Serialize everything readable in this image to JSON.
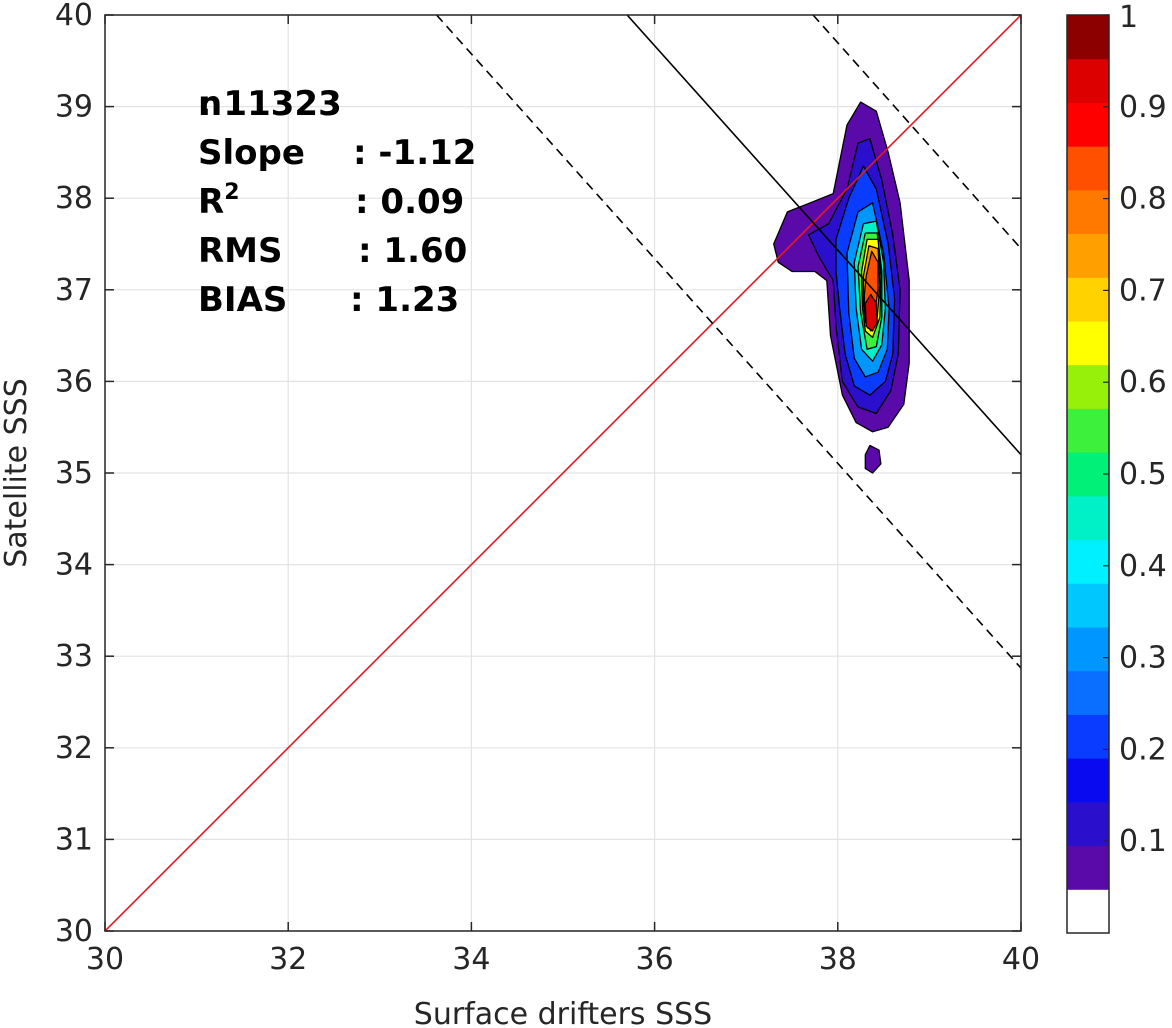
{
  "chart_data": {
    "type": "contour",
    "xlabel": "Surface drifters SSS",
    "ylabel": "Satellite SSS",
    "xlim": [
      30,
      40
    ],
    "ylim": [
      30,
      40
    ],
    "x_ticks": [
      "30",
      "32",
      "34",
      "36",
      "38",
      "40"
    ],
    "y_ticks": [
      "30",
      "31",
      "32",
      "33",
      "34",
      "35",
      "36",
      "37",
      "38",
      "39",
      "40"
    ],
    "grid": true,
    "stats": [
      {
        "label": "n",
        "value": ": 11323"
      },
      {
        "label": "Slope",
        "value": ": -1.12"
      },
      {
        "label": "R",
        "sup": "2",
        "value": ": 0.09"
      },
      {
        "label": "RMS",
        "value": ": 1.60"
      },
      {
        "label": "BIAS",
        "value": ": 1.23"
      }
    ],
    "reference_lines": [
      {
        "name": "one-to-one",
        "style": "solid",
        "color": "#e41a1c",
        "points": [
          [
            30,
            30
          ],
          [
            40,
            40
          ]
        ]
      },
      {
        "name": "regression-fit",
        "style": "solid",
        "color": "#000000",
        "points": [
          [
            35.7,
            40
          ],
          [
            40,
            35.2
          ]
        ]
      },
      {
        "name": "upper-rms-bound",
        "style": "dashed",
        "color": "#000000",
        "points": [
          [
            37.73,
            40
          ],
          [
            40,
            37.45
          ]
        ]
      },
      {
        "name": "lower-rms-bound",
        "style": "dashed",
        "color": "#000000",
        "points": [
          [
            33.62,
            40
          ],
          [
            40,
            32.87
          ]
        ]
      }
    ],
    "density_levels": [
      {
        "level": 0.05,
        "color": "#5a0aa8",
        "polygon": [
          [
            37.3,
            37.5
          ],
          [
            37.45,
            37.85
          ],
          [
            37.7,
            37.95
          ],
          [
            37.95,
            38.05
          ],
          [
            38.1,
            38.8
          ],
          [
            38.25,
            39.05
          ],
          [
            38.42,
            38.95
          ],
          [
            38.55,
            38.5
          ],
          [
            38.68,
            37.95
          ],
          [
            38.78,
            37.1
          ],
          [
            38.78,
            36.2
          ],
          [
            38.72,
            35.75
          ],
          [
            38.55,
            35.5
          ],
          [
            38.38,
            35.45
          ],
          [
            38.2,
            35.55
          ],
          [
            38.05,
            35.85
          ],
          [
            37.92,
            36.5
          ],
          [
            37.88,
            37.1
          ],
          [
            37.75,
            37.2
          ],
          [
            37.5,
            37.2
          ],
          [
            37.35,
            37.3
          ]
        ]
      },
      {
        "level": 0.05,
        "color": "#5a0aa8",
        "polygon": [
          [
            38.3,
            35.2
          ],
          [
            38.35,
            35.3
          ],
          [
            38.45,
            35.25
          ],
          [
            38.47,
            35.1
          ],
          [
            38.38,
            35.0
          ],
          [
            38.3,
            35.05
          ]
        ]
      },
      {
        "level": 0.1,
        "color": "#2a10cc",
        "polygon": [
          [
            37.68,
            37.6
          ],
          [
            37.9,
            37.72
          ],
          [
            38.1,
            38.1
          ],
          [
            38.22,
            38.6
          ],
          [
            38.35,
            38.65
          ],
          [
            38.48,
            38.2
          ],
          [
            38.6,
            37.6
          ],
          [
            38.68,
            37.0
          ],
          [
            38.66,
            36.3
          ],
          [
            38.58,
            35.9
          ],
          [
            38.42,
            35.65
          ],
          [
            38.22,
            35.72
          ],
          [
            38.05,
            36.0
          ],
          [
            37.98,
            36.6
          ],
          [
            37.95,
            37.1
          ],
          [
            37.8,
            37.35
          ]
        ]
      },
      {
        "level": 0.2,
        "color": "#0a3cff",
        "polygon": [
          [
            37.98,
            37.55
          ],
          [
            38.12,
            38.0
          ],
          [
            38.28,
            38.35
          ],
          [
            38.42,
            38.1
          ],
          [
            38.55,
            37.5
          ],
          [
            38.62,
            36.9
          ],
          [
            38.6,
            36.3
          ],
          [
            38.52,
            36.0
          ],
          [
            38.35,
            35.85
          ],
          [
            38.18,
            35.95
          ],
          [
            38.08,
            36.3
          ],
          [
            38.02,
            36.8
          ],
          [
            37.98,
            37.2
          ]
        ]
      },
      {
        "level": 0.3,
        "color": "#0096ff",
        "polygon": [
          [
            38.1,
            37.4
          ],
          [
            38.22,
            37.85
          ],
          [
            38.38,
            37.95
          ],
          [
            38.5,
            37.4
          ],
          [
            38.56,
            36.8
          ],
          [
            38.54,
            36.35
          ],
          [
            38.44,
            36.1
          ],
          [
            38.3,
            36.05
          ],
          [
            38.18,
            36.25
          ],
          [
            38.12,
            36.75
          ]
        ]
      },
      {
        "level": 0.4,
        "color": "#00f0c8",
        "polygon": [
          [
            38.18,
            37.3
          ],
          [
            38.28,
            37.72
          ],
          [
            38.42,
            37.75
          ],
          [
            38.5,
            37.3
          ],
          [
            38.52,
            36.8
          ],
          [
            38.48,
            36.4
          ],
          [
            38.38,
            36.22
          ],
          [
            38.26,
            36.35
          ],
          [
            38.2,
            36.8
          ]
        ]
      },
      {
        "level": 0.5,
        "color": "#3cf03c",
        "polygon": [
          [
            38.22,
            37.25
          ],
          [
            38.3,
            37.62
          ],
          [
            38.43,
            37.62
          ],
          [
            38.48,
            37.2
          ],
          [
            38.48,
            36.7
          ],
          [
            38.42,
            36.38
          ],
          [
            38.32,
            36.35
          ],
          [
            38.25,
            36.75
          ]
        ]
      },
      {
        "level": 0.6,
        "color": "#ffff00",
        "polygon": [
          [
            38.26,
            37.2
          ],
          [
            38.32,
            37.55
          ],
          [
            38.44,
            37.55
          ],
          [
            38.47,
            37.15
          ],
          [
            38.46,
            36.7
          ],
          [
            38.38,
            36.48
          ],
          [
            38.3,
            36.55
          ],
          [
            38.27,
            36.8
          ]
        ]
      },
      {
        "level": 0.7,
        "color": "#ffa000",
        "polygon": [
          [
            38.28,
            37.15
          ],
          [
            38.34,
            37.48
          ],
          [
            38.44,
            37.45
          ],
          [
            38.46,
            37.05
          ],
          [
            38.43,
            36.7
          ],
          [
            38.36,
            36.55
          ],
          [
            38.3,
            36.65
          ],
          [
            38.28,
            36.85
          ]
        ]
      },
      {
        "level": 0.8,
        "color": "#ff5000",
        "polygon": [
          [
            38.31,
            37.15
          ],
          [
            38.37,
            37.42
          ],
          [
            38.44,
            37.3
          ],
          [
            38.44,
            37.0
          ],
          [
            38.4,
            36.75
          ],
          [
            38.33,
            36.58
          ],
          [
            38.29,
            36.7
          ],
          [
            38.29,
            36.95
          ]
        ]
      },
      {
        "level": 0.9,
        "color": "#dc0000",
        "polygon": [
          [
            38.3,
            36.85
          ],
          [
            38.36,
            36.95
          ],
          [
            38.42,
            36.85
          ],
          [
            38.43,
            36.65
          ],
          [
            38.38,
            36.55
          ],
          [
            38.31,
            36.6
          ]
        ]
      }
    ],
    "colorbar": {
      "ticks": [
        "0.1",
        "0.2",
        "0.3",
        "0.4",
        "0.5",
        "0.6",
        "0.7",
        "0.8",
        "0.9",
        "1"
      ],
      "tick_values": [
        0.1,
        0.2,
        0.3,
        0.4,
        0.5,
        0.6,
        0.7,
        0.8,
        0.9,
        1.0
      ],
      "range": [
        0,
        1
      ],
      "colors": [
        "#ffffff",
        "#5a0aa8",
        "#2a10cc",
        "#0a0af0",
        "#0a3cff",
        "#0a6eff",
        "#0096ff",
        "#00c8ff",
        "#00f0ff",
        "#00f0c8",
        "#00f078",
        "#3cf03c",
        "#96f00a",
        "#ffff00",
        "#ffd200",
        "#ffa000",
        "#ff7800",
        "#ff5000",
        "#ff0000",
        "#dc0000",
        "#8c0000"
      ]
    }
  }
}
